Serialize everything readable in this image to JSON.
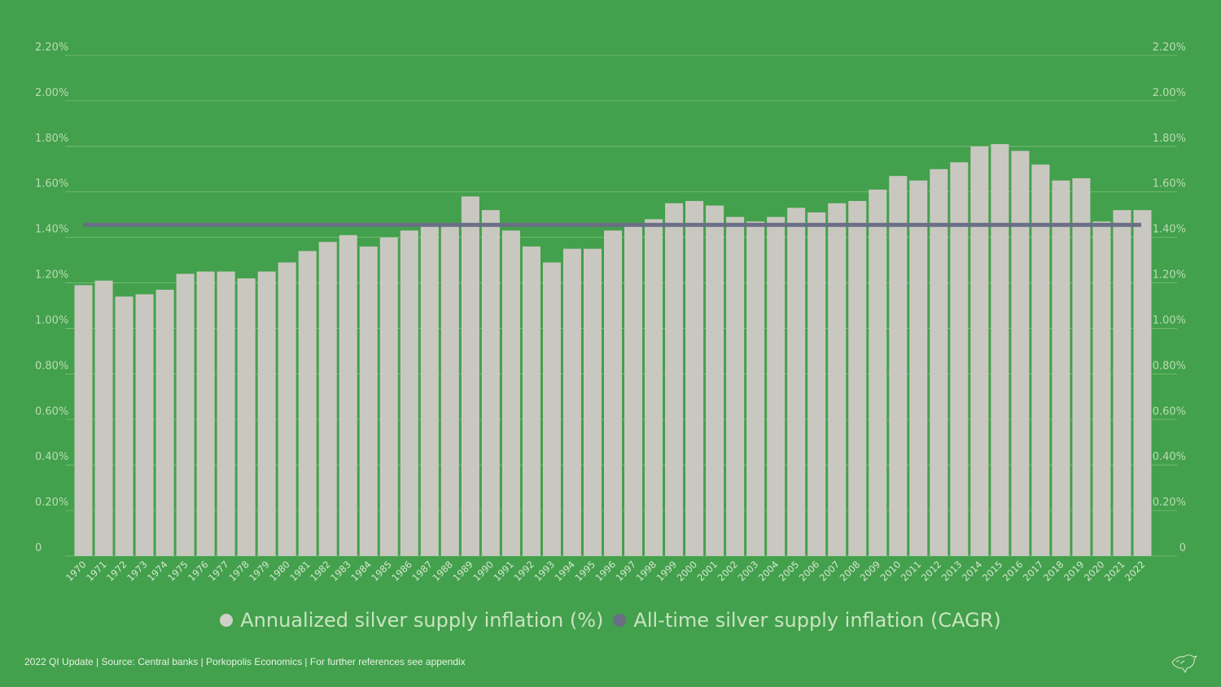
{
  "chart_data": {
    "type": "bar",
    "title": "",
    "xlabel": "",
    "ylabel": "",
    "ylim": [
      0,
      2.2
    ],
    "y_ticks": [
      "0",
      "0.20%",
      "0.40%",
      "0.60%",
      "0.80%",
      "1.00%",
      "1.20%",
      "1.40%",
      "1.60%",
      "1.80%",
      "2.00%",
      "2.20%"
    ],
    "y_tick_values": [
      0,
      0.2,
      0.4,
      0.6,
      0.8,
      1.0,
      1.2,
      1.4,
      1.6,
      1.8,
      2.0,
      2.2
    ],
    "secondary_axis": "right (same scale)",
    "grid": true,
    "legend_position": "bottom-center",
    "categories": [
      "1970",
      "1971",
      "1972",
      "1973",
      "1974",
      "1975",
      "1976",
      "1977",
      "1978",
      "1979",
      "1980",
      "1981",
      "1982",
      "1983",
      "1984",
      "1985",
      "1986",
      "1987",
      "1988",
      "1989",
      "1990",
      "1991",
      "1992",
      "1993",
      "1994",
      "1995",
      "1996",
      "1997",
      "1998",
      "1999",
      "2000",
      "2001",
      "2002",
      "2003",
      "2004",
      "2005",
      "2006",
      "2007",
      "2008",
      "2009",
      "2010",
      "2011",
      "2012",
      "2013",
      "2014",
      "2015",
      "2016",
      "2017",
      "2018",
      "2019",
      "2020",
      "2021",
      "2022"
    ],
    "series": [
      {
        "name": "Annualized silver supply inflation (%)",
        "type": "bar",
        "color": "#c9c8c0",
        "values": [
          1.19,
          1.21,
          1.14,
          1.15,
          1.17,
          1.24,
          1.25,
          1.25,
          1.22,
          1.25,
          1.29,
          1.34,
          1.38,
          1.41,
          1.36,
          1.4,
          1.43,
          1.46,
          1.46,
          1.58,
          1.52,
          1.43,
          1.36,
          1.29,
          1.35,
          1.35,
          1.43,
          1.45,
          1.48,
          1.55,
          1.56,
          1.54,
          1.49,
          1.47,
          1.49,
          1.53,
          1.51,
          1.55,
          1.56,
          1.61,
          1.67,
          1.65,
          1.7,
          1.73,
          1.8,
          1.81,
          1.78,
          1.72,
          1.65,
          1.66,
          1.47,
          1.52,
          1.52
        ]
      },
      {
        "name": "All-time silver supply inflation (CAGR)",
        "type": "line",
        "color": "#6a6e86",
        "value": 1.455
      }
    ]
  },
  "footer": {
    "text": "2022 QI Update | Source: Central banks | Porkopolis Economics | For further references see appendix"
  },
  "logo": {
    "icon": "bird-logo-icon"
  }
}
